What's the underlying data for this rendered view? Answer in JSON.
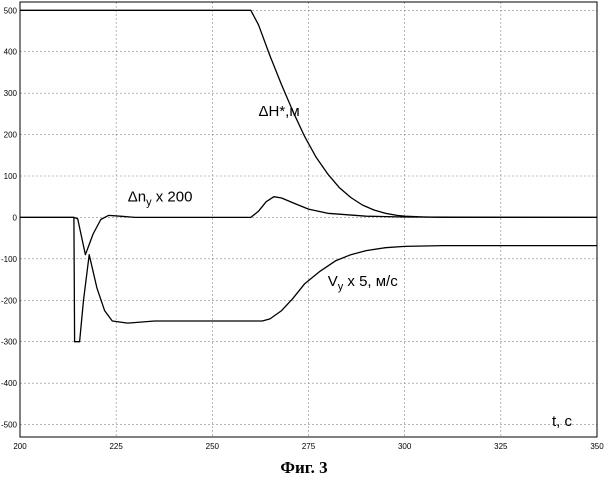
{
  "caption": "Фиг. 3",
  "chart_data": {
    "type": "line",
    "title": "",
    "xlabel": "t, c",
    "ylabel": "",
    "xlim": [
      200,
      350
    ],
    "ylim": [
      -530,
      520
    ],
    "grid": true,
    "x_ticks": [
      200,
      225,
      250,
      275,
      300,
      325,
      350
    ],
    "y_ticks": [
      500,
      400,
      300,
      200,
      100,
      0,
      -100,
      -200,
      -300,
      -400,
      -500
    ],
    "series": [
      {
        "name": "ΔH*,м",
        "x": [
          200,
          260,
          262,
          265,
          268,
          271,
          274,
          277,
          280,
          283,
          286,
          289,
          292,
          295,
          298,
          300,
          305,
          310,
          350
        ],
        "y": [
          500,
          500,
          465,
          390,
          320,
          255,
          195,
          145,
          105,
          72,
          48,
          30,
          18,
          10,
          5,
          3,
          1,
          0,
          0
        ]
      },
      {
        "name": "Δn_y x 200",
        "x": [
          200,
          214,
          215,
          217,
          219,
          221,
          223,
          226,
          230,
          240,
          260,
          262,
          264,
          266,
          268,
          271,
          275,
          280,
          290,
          300,
          350
        ],
        "y": [
          0,
          0,
          -3,
          -90,
          -40,
          -5,
          5,
          3,
          0,
          0,
          0,
          15,
          38,
          50,
          47,
          35,
          20,
          10,
          3,
          1,
          0
        ]
      },
      {
        "name": "V_y x 5, м/с",
        "x": [
          200,
          214,
          214.2,
          215.5,
          216.5,
          218,
          220,
          222,
          224,
          228,
          235,
          250,
          263,
          265,
          268,
          271,
          274,
          278,
          282,
          286,
          290,
          295,
          300,
          310,
          350
        ],
        "y": [
          0,
          0,
          -300,
          -300,
          -200,
          -90,
          -170,
          -225,
          -250,
          -255,
          -250,
          -250,
          -250,
          -245,
          -225,
          -195,
          -160,
          -130,
          -105,
          -90,
          -80,
          -73,
          -70,
          -68,
          -68
        ]
      }
    ],
    "annotations": [
      {
        "base": "ΔH*,м",
        "sub": "",
        "rest": "",
        "x": 262,
        "y": 245
      },
      {
        "base": "Δn",
        "sub": "y",
        "rest": " x 200",
        "x": 228,
        "y": 38
      },
      {
        "base": "V",
        "sub": "y",
        "rest": " x 5, м/с",
        "x": 280,
        "y": -165
      }
    ]
  }
}
